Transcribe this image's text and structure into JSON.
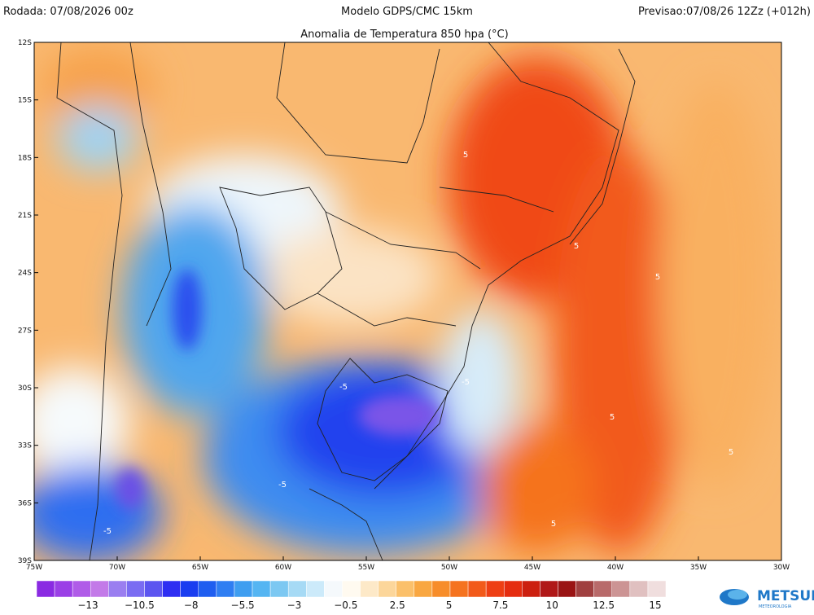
{
  "header": {
    "left": "Rodada: 07/08/2026 00z",
    "center": "Modelo GDPS/CMC 15km",
    "right": "Previsao:07/08/26 12Zz (+012h)"
  },
  "title": "Anomalia de Temperatura 850 hpa (°C)",
  "lat_labels": [
    "12S",
    "15S",
    "18S",
    "21S",
    "24S",
    "27S",
    "30S",
    "33S",
    "36S",
    "39S"
  ],
  "lon_labels": [
    "75W",
    "70W",
    "65W",
    "60W",
    "55W",
    "50W",
    "45W",
    "40W",
    "35W",
    "30W"
  ],
  "contour_labels": [
    "5",
    "5",
    "5",
    "5",
    "5",
    "-5",
    "-5",
    "-5",
    "-5",
    "5"
  ],
  "colorbar": {
    "labels": [
      "−13",
      "−10.5",
      "−8",
      "−5.5",
      "−3",
      "−0.5",
      "2.5",
      "5",
      "7.5",
      "10",
      "12.5",
      "15"
    ],
    "colors": [
      "#8a2be2",
      "#9b40e6",
      "#b05ce8",
      "#c37ae8",
      "#9a7ef0",
      "#7a6cf2",
      "#5c55f0",
      "#2e2ef2",
      "#1a3df0",
      "#1f5ef0",
      "#2f7ef2",
      "#3f9ef0",
      "#55b5f2",
      "#7cc8f2",
      "#a6daf5",
      "#cceafa",
      "#f5f9fc",
      "#fffaf0",
      "#fde9c8",
      "#fcd69a",
      "#fbc06a",
      "#f9a741",
      "#f78d2a",
      "#f5731f",
      "#f25a1a",
      "#ee3f14",
      "#e52d10",
      "#cc2010",
      "#b01818",
      "#9a1414",
      "#a04040",
      "#b86a6a",
      "#cc9494",
      "#e0c0c0",
      "#f0dede"
    ]
  },
  "logo": {
    "name": "METSUL",
    "sub": "METEOROLOGIA"
  }
}
